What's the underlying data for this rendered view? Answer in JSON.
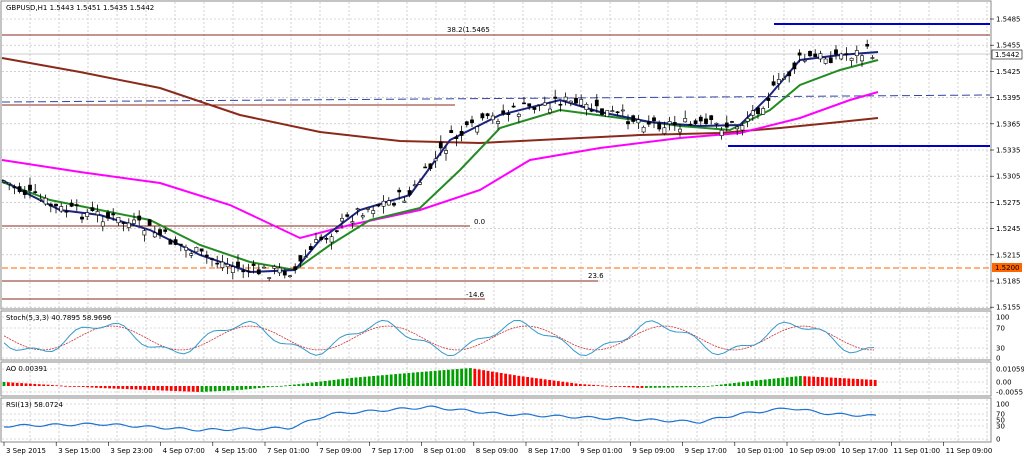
{
  "main_panel": {
    "title": "GBPUSD,H1",
    "ohlc": "1.5443 1.5451 1.5435 1.5442",
    "price_labels": [
      "1.5485",
      "1.5455",
      "1.5425",
      "1.5395",
      "1.5365",
      "1.5335",
      "1.5305",
      "1.5275",
      "1.5245",
      "1.5215",
      "1.5185",
      "1.5155"
    ],
    "current_price": "1.5442",
    "marker_price": "1.5200",
    "fib_labels": {
      "top": "38.2(1.5465",
      "zero": "0.0",
      "mid": "23.6",
      "neg": "-14.6"
    }
  },
  "stoch_panel": {
    "title": "Stoch(5,3,3) 40.7895 58.9696",
    "levels": [
      "100",
      "70",
      "30",
      "0"
    ]
  },
  "ao_panel": {
    "title": "AO 0.00391",
    "levels": [
      "0.01059",
      "0.00",
      "-0.0055"
    ]
  },
  "rsi_panel": {
    "title": "RSI(13) 58.0724",
    "levels": [
      "100",
      "70",
      "50",
      "30",
      "0"
    ]
  },
  "time_axis": [
    "3 Sep 2015",
    "3 Sep 15:00",
    "3 Sep 23:00",
    "4 Sep 07:00",
    "4 Sep 15:00",
    "7 Sep 01:00",
    "7 Sep 09:00",
    "7 Sep 17:00",
    "8 Sep 01:00",
    "8 Sep 09:00",
    "8 Sep 17:00",
    "9 Sep 01:00",
    "9 Sep 09:00",
    "9 Sep 17:00",
    "10 Sep 01:00",
    "10 Sep 09:00",
    "10 Sep 17:00",
    "11 Sep 01:00",
    "11 Sep 09:00"
  ],
  "colors": {
    "candle": "#000000",
    "ma_fast": "#1a237e",
    "ma_mid": "#228b22",
    "ma_pink": "#ff00ff",
    "ma_slow": "#8b2a1a",
    "hline_dark": "#0000cc",
    "ao_up": "#00a000",
    "ao_down": "#ff0000",
    "stoch_main": "#3399cc",
    "stoch_signal": "#cc3333",
    "rsi": "#1e73d2",
    "price_marker": "#ff6600",
    "current_bg": "#ffffff"
  }
}
